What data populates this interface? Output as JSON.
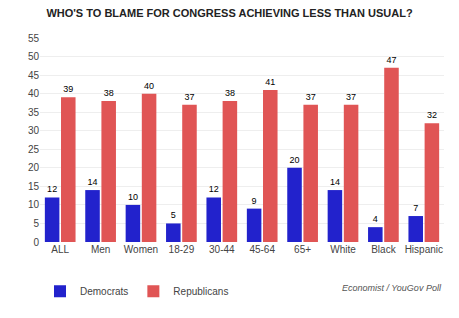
{
  "chart_data": {
    "type": "bar",
    "title": "WHO'S TO BLAME FOR CONGRESS ACHIEVING LESS THAN USUAL?",
    "categories": [
      "ALL",
      "Men",
      "Women",
      "18-29",
      "30-44",
      "45-64",
      "65+",
      "White",
      "Black",
      "Hispanic"
    ],
    "series": [
      {
        "name": "Democrats",
        "color": "#2222cc",
        "values": [
          12,
          14,
          10,
          5,
          12,
          9,
          20,
          14,
          4,
          7
        ]
      },
      {
        "name": "Republicans",
        "color": "#e05555",
        "values": [
          39,
          38,
          40,
          37,
          38,
          41,
          37,
          37,
          47,
          32
        ]
      }
    ],
    "ylim": [
      0,
      55
    ],
    "yticks": [
      0,
      5,
      10,
      15,
      20,
      25,
      30,
      35,
      40,
      45,
      50,
      55
    ],
    "grid": true,
    "data_labels": true,
    "legend": "lower left",
    "annotations": [
      "Economist / YouGov Poll"
    ]
  }
}
